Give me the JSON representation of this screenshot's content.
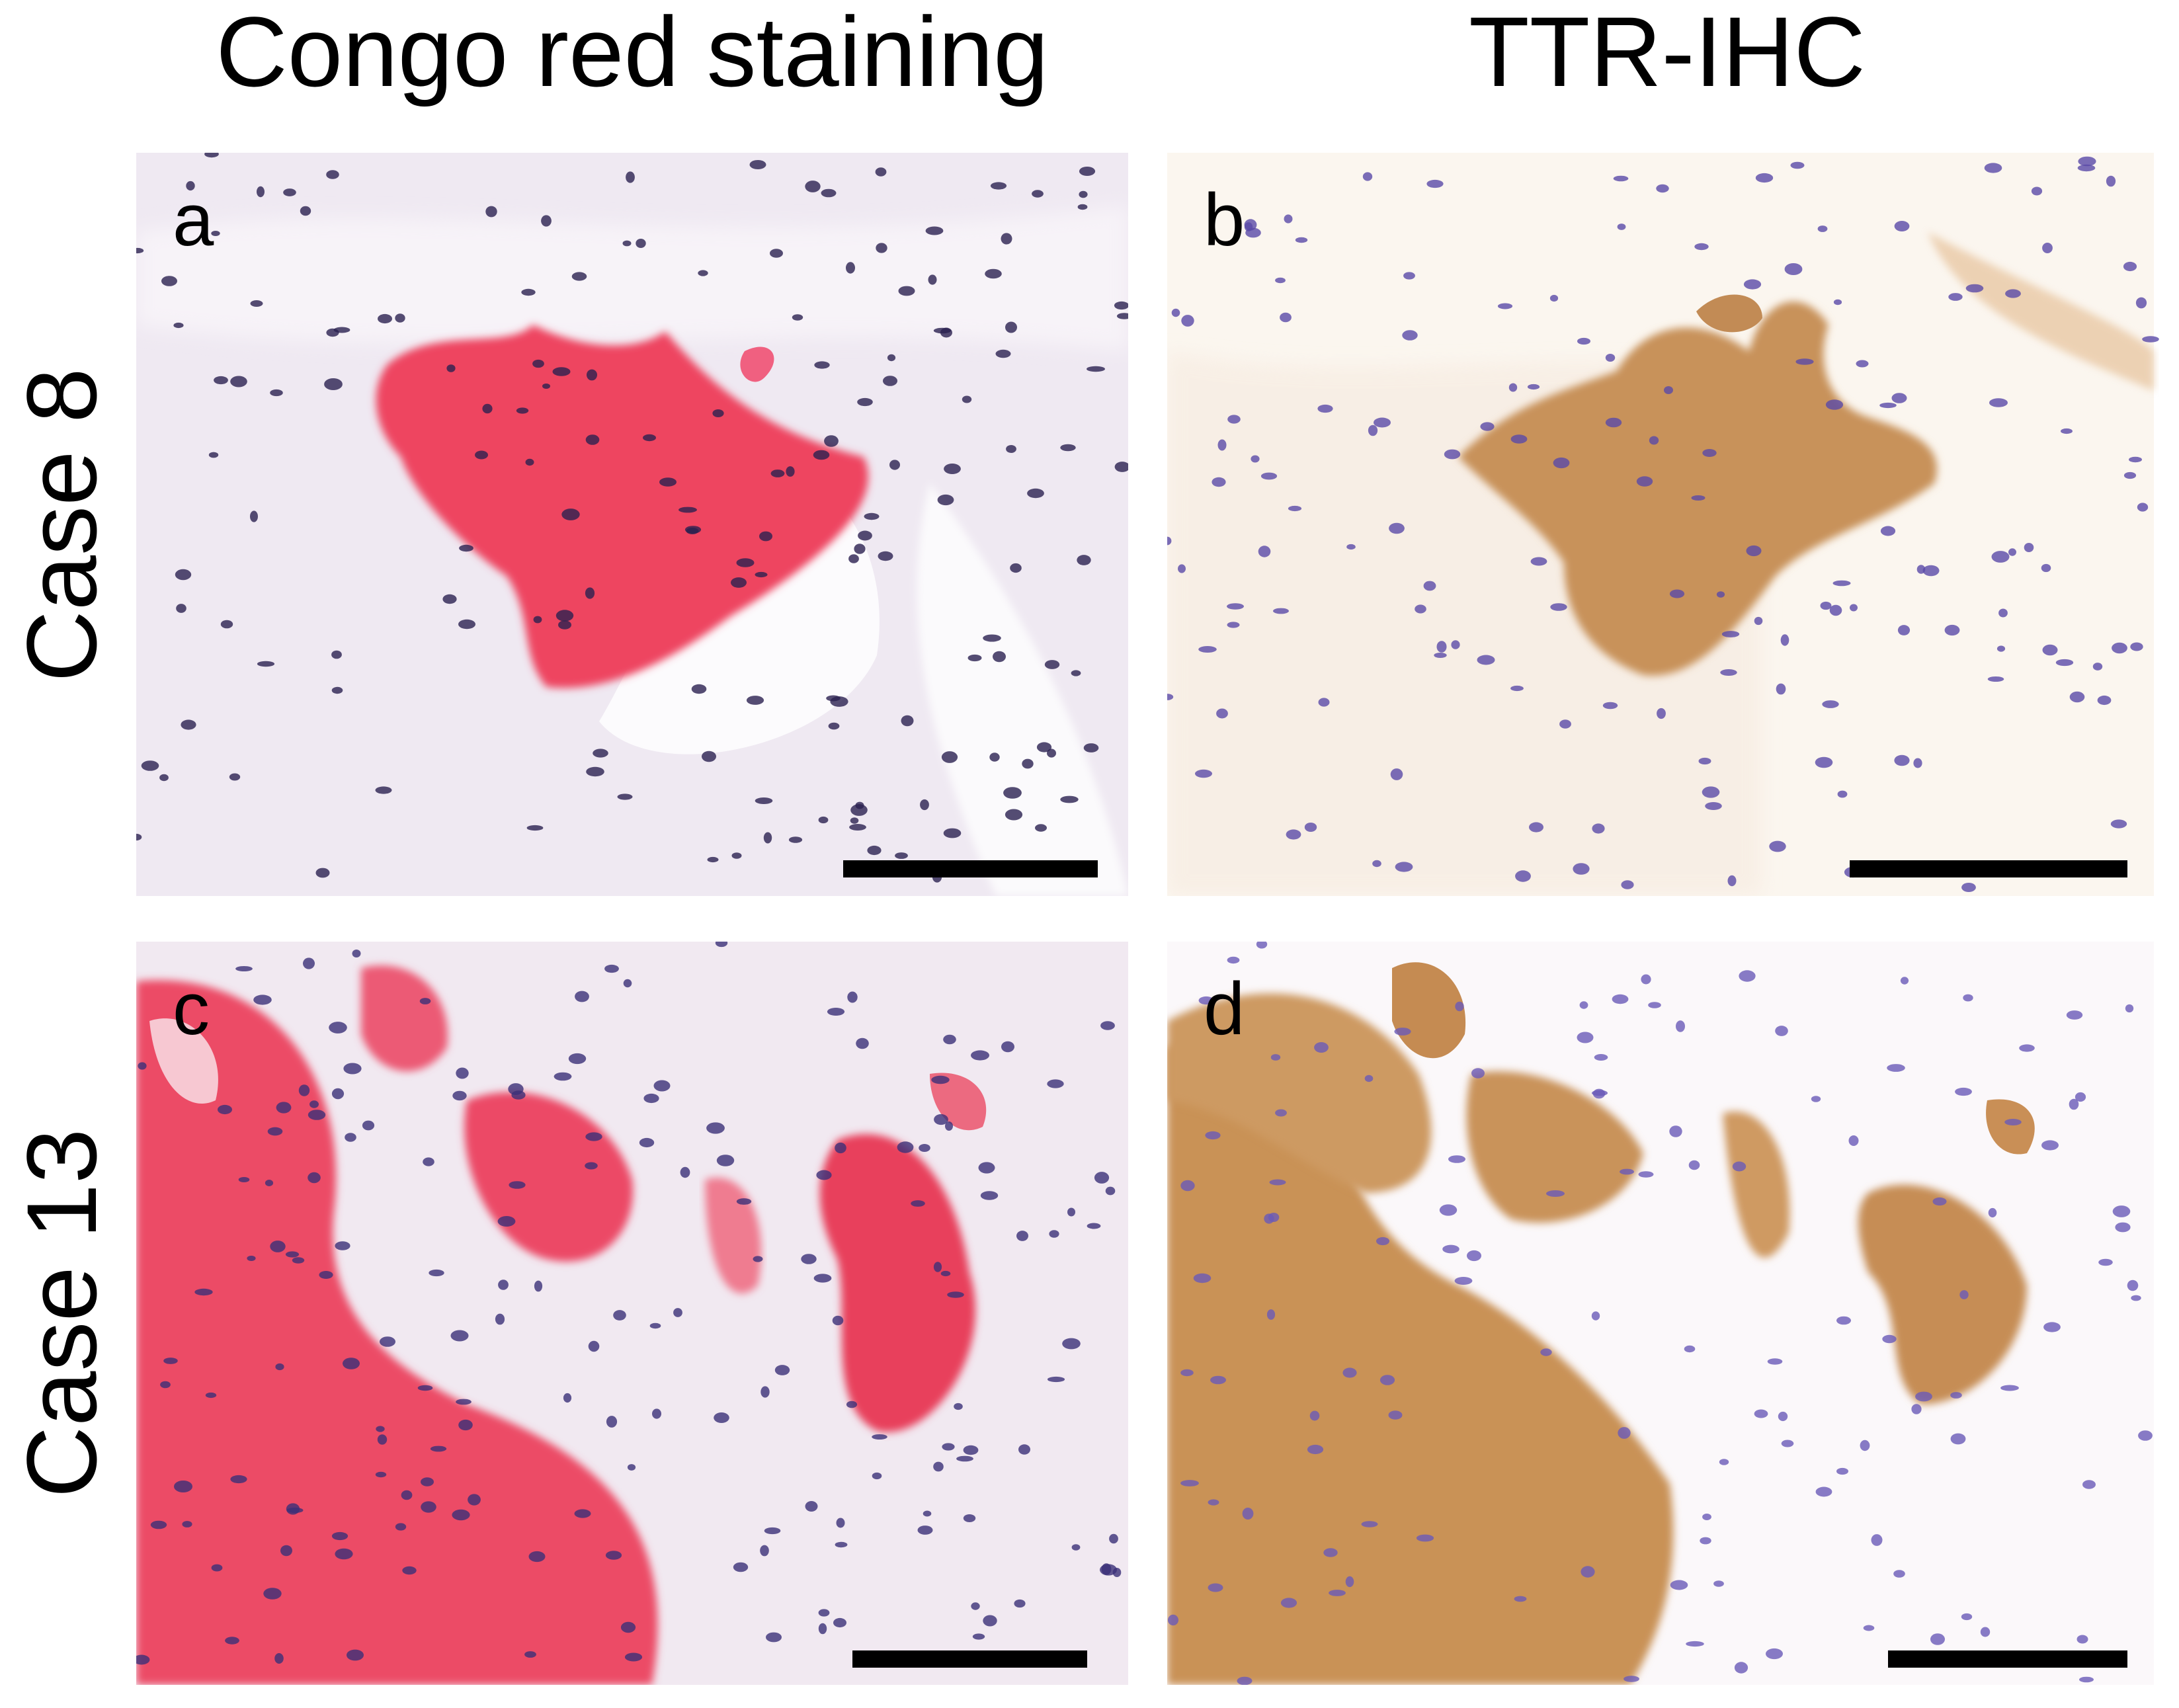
{
  "column_titles": [
    "Congo red staining",
    "TTR-IHC"
  ],
  "row_labels": [
    "Case 8",
    "Case 13"
  ],
  "panels": [
    {
      "letter": "a"
    },
    {
      "letter": "b"
    },
    {
      "letter": "c"
    },
    {
      "letter": "d"
    }
  ]
}
